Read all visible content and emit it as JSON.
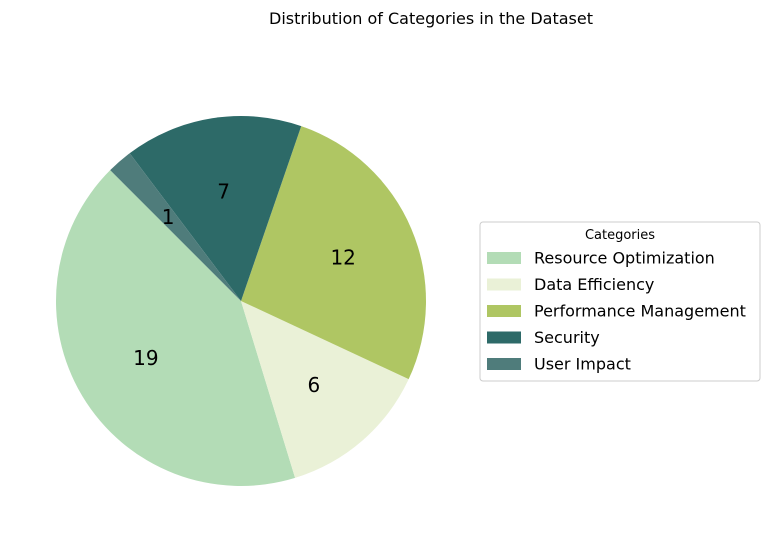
{
  "chart_data": {
    "type": "pie",
    "title": "Distribution of Categories in the Dataset",
    "categories": [
      "Resource Optimization",
      "Data Efficiency",
      "Performance Management",
      "Security",
      "User Impact"
    ],
    "values": [
      19,
      6,
      12,
      7,
      1
    ],
    "colors": [
      "#b3dcb6",
      "#eaf1d7",
      "#afc663",
      "#2d6a68",
      "#4f7c7b"
    ],
    "start_angle_deg": 135,
    "direction": "counterclockwise",
    "legend": {
      "title": "Categories",
      "placement": "center-right"
    }
  }
}
